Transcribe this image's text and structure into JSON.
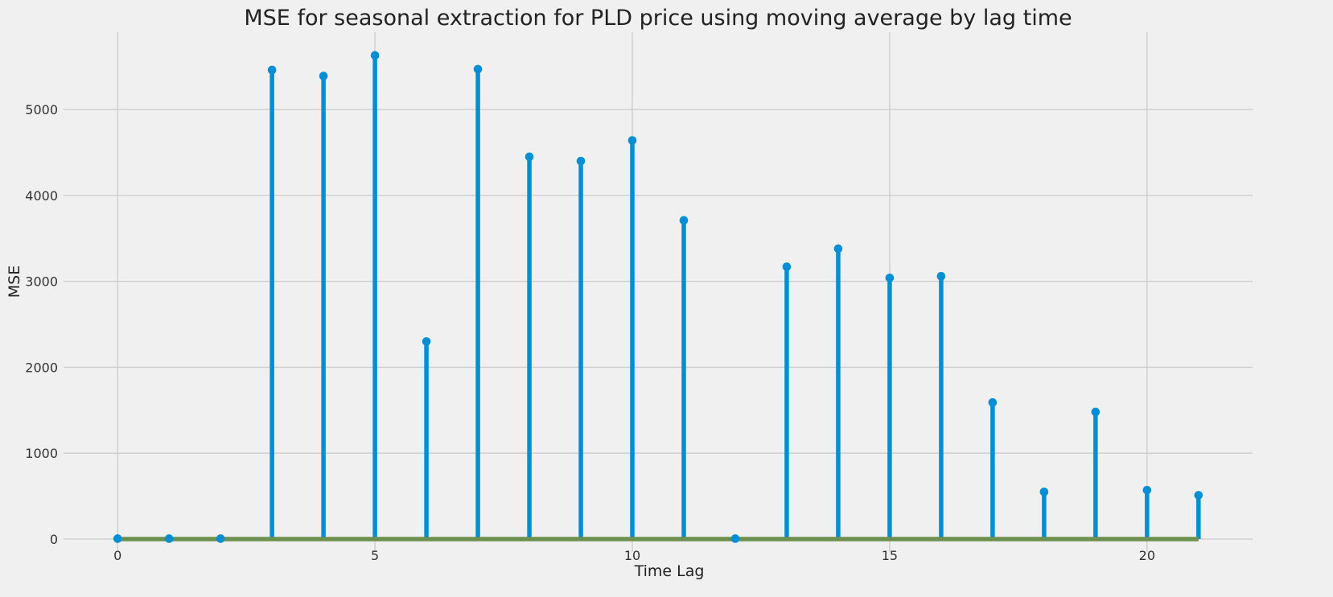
{
  "chart_data": {
    "type": "stem",
    "title": "MSE for seasonal extraction for PLD price using moving average by lag time",
    "xlabel": "Time Lag",
    "ylabel": "MSE",
    "xlim": [
      -1.05,
      22.05
    ],
    "ylim": [
      -150,
      5900
    ],
    "xticks": [
      0,
      5,
      10,
      15,
      20
    ],
    "yticks": [
      0,
      1000,
      2000,
      3000,
      4000,
      5000
    ],
    "x": [
      0,
      1,
      2,
      3,
      4,
      5,
      6,
      7,
      8,
      9,
      10,
      11,
      12,
      13,
      14,
      15,
      16,
      17,
      18,
      19,
      20,
      21
    ],
    "values": [
      5,
      5,
      5,
      5460,
      5390,
      5630,
      2300,
      5470,
      4450,
      4400,
      4640,
      3710,
      5,
      3170,
      3380,
      3040,
      3060,
      1590,
      550,
      1480,
      570,
      510
    ],
    "grid": true,
    "colors": {
      "stem": "#008fd5",
      "baseline": "#6d904f",
      "background": "#f0f0f0",
      "grid": "#cbcbcb"
    }
  }
}
